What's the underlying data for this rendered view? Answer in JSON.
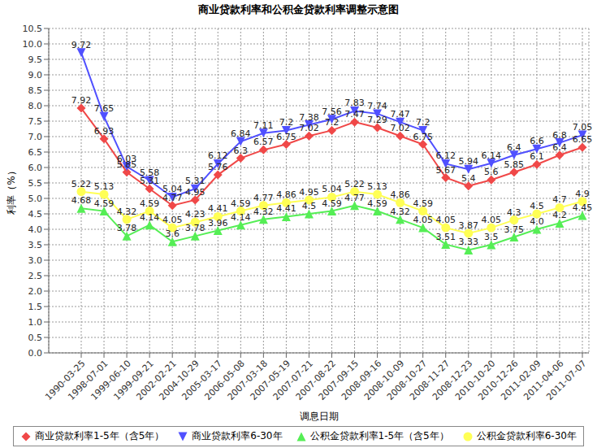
{
  "chart_data": {
    "type": "line",
    "title": "商业贷款利率和公积金贷款利率调整示意图",
    "x_label": "调息日期",
    "y_label": "利率（%）",
    "categories": [
      "1990-03-25",
      "1998-07-01",
      "1999-06-10",
      "1999-09-21",
      "2002-02-21",
      "2004-10-29",
      "2005-03-17",
      "2006-05-08",
      "2007-03-18",
      "2007-05-19",
      "2007-07-21",
      "2007-08-22",
      "2007-09-15",
      "2008-09-16",
      "2008-10-09",
      "2008-10-27",
      "2008-11-27",
      "2008-12-23",
      "2010-10-20",
      "2010-12-26",
      "2011-02-09",
      "2011-04-06",
      "2011-07-07"
    ],
    "series": [
      {
        "name": "商业贷款利率1-5年（含5年）",
        "color": "#f04848",
        "marker": "diamond",
        "values": [
          7.92,
          6.93,
          5.85,
          5.31,
          4.77,
          4.95,
          5.76,
          6.3,
          6.57,
          6.75,
          7.02,
          7.2,
          7.47,
          7.29,
          7.02,
          6.75,
          5.67,
          5.4,
          5.6,
          5.85,
          6.1,
          6.4,
          6.65
        ]
      },
      {
        "name": "商业贷款利率6-30年",
        "color": "#5050ff",
        "marker": "triangle-down",
        "values": [
          9.72,
          7.65,
          6.03,
          5.58,
          5.04,
          5.31,
          6.12,
          6.84,
          7.11,
          7.2,
          7.38,
          7.56,
          7.83,
          7.74,
          7.47,
          7.2,
          6.12,
          5.94,
          6.14,
          6.4,
          6.6,
          6.8,
          7.05
        ]
      },
      {
        "name": "公积金贷款利率1-5年（含5年）",
        "color": "#55ee55",
        "marker": "triangle",
        "values": [
          4.68,
          4.59,
          3.78,
          4.14,
          3.6,
          3.78,
          3.96,
          4.14,
          4.32,
          4.41,
          4.5,
          4.59,
          4.77,
          4.59,
          4.32,
          4.05,
          3.51,
          3.33,
          3.5,
          3.75,
          4.0,
          4.2,
          4.45
        ],
        "value_labels": [
          "4.68",
          "4.59",
          "3.78",
          "4.14",
          "3.6",
          "3.78",
          "3.96",
          "4.14",
          "4.32",
          "4.41",
          "4.5",
          "4.59",
          "4.77",
          "4.59",
          "4.32",
          "4.05",
          "3.51",
          "3.33",
          "3.5",
          "3.75",
          "4.0",
          "4.2",
          "4.45"
        ]
      },
      {
        "name": "公积金贷款利率6-30年",
        "color": "#ffff55",
        "marker": "circle",
        "values": [
          5.22,
          5.13,
          4.32,
          4.59,
          4.05,
          4.23,
          4.41,
          4.59,
          4.77,
          4.86,
          4.95,
          5.04,
          5.22,
          5.13,
          4.86,
          4.59,
          4.05,
          3.87,
          4.05,
          4.3,
          4.5,
          4.7,
          4.9
        ]
      }
    ],
    "ylim": [
      0,
      10.5
    ],
    "yticks": [
      {
        "value": 0,
        "label": "0.0"
      },
      0.5,
      {
        "value": 1,
        "label": "1.0"
      },
      1.5,
      {
        "value": 2,
        "label": "2.0"
      },
      2.5,
      {
        "value": 3,
        "label": "3.0"
      },
      3.5,
      {
        "value": 4,
        "label": "4.0"
      },
      4.5,
      {
        "value": 5,
        "label": "5.0"
      },
      5.5,
      {
        "value": 6,
        "label": "6.0"
      },
      6.5,
      {
        "value": 7,
        "label": "7.0"
      },
      7.5,
      {
        "value": 8,
        "label": "8.0"
      },
      8.5,
      {
        "value": 9,
        "label": "9.0"
      },
      9.5,
      {
        "value": 10,
        "label": "10.0"
      },
      10.5
    ],
    "grid": true,
    "legend": "bottom",
    "data_labels": true
  }
}
